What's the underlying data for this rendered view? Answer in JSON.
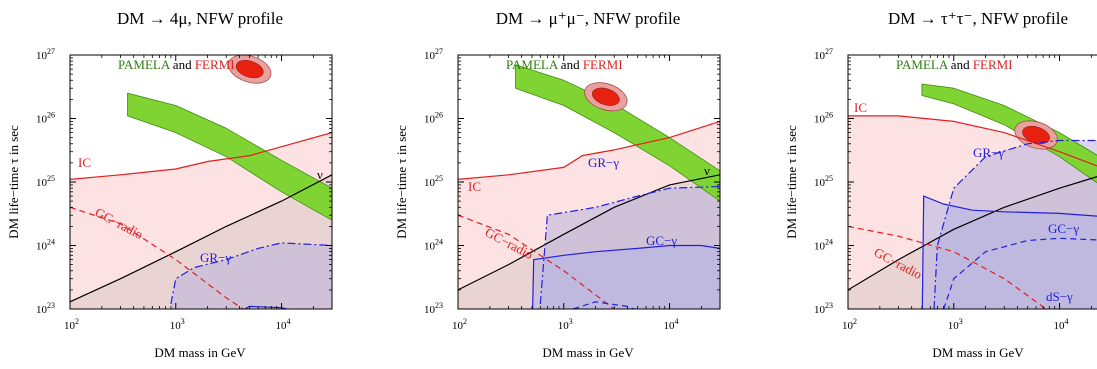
{
  "chart_data": [
    {
      "type": "area",
      "title": "DM → 4μ, NFW profile",
      "xlabel": "DM mass in GeV",
      "ylabel": "DM life−time τ in sec",
      "x_scale": "log",
      "y_scale": "log",
      "xlim": [
        100,
        30000
      ],
      "ylim": [
        1e+23,
        1e+27
      ],
      "x_ticks": [
        {
          "value": 100,
          "base": "10",
          "exp": "2"
        },
        {
          "value": 1000,
          "base": "10",
          "exp": "3"
        },
        {
          "value": 10000,
          "base": "10",
          "exp": "4"
        }
      ],
      "y_ticks": [
        {
          "value": 1e+23,
          "base": "10",
          "exp": "23"
        },
        {
          "value": 1e+24,
          "base": "10",
          "exp": "24"
        },
        {
          "value": 1e+25,
          "base": "10",
          "exp": "25"
        },
        {
          "value": 1e+26,
          "base": "10",
          "exp": "26"
        },
        {
          "value": 1e+27,
          "base": "10",
          "exp": "27"
        }
      ],
      "regions": [
        {
          "label": "PAMELA and FERMI",
          "label_parts": [
            "PAMELA",
            " and ",
            "FERMI"
          ],
          "fill": "#7fd433",
          "stroke": "#3f8c10",
          "style": "band",
          "x": [
            350,
            1000,
            3000,
            10000,
            30000
          ],
          "y_upper": [
            2.5e+26,
            1.6e+26,
            7e+25,
            2.2e+25,
            8e+24
          ],
          "y_lower": [
            1.1e+26,
            6e+25,
            2.5e+25,
            7e+24,
            2.5e+24
          ]
        },
        {
          "label": "IC",
          "color": "#e02020",
          "fill": "#f9caca",
          "style": "solid",
          "x": [
            100,
            300,
            1000,
            2000,
            5000,
            10000,
            30000
          ],
          "y": [
            1.1e+25,
            1.3e+25,
            1.6e+25,
            2.1e+25,
            2.6e+25,
            3.6e+25,
            6e+25
          ]
        },
        {
          "label": "ν",
          "color": "#000000",
          "fill": "#d9c6c6",
          "style": "solid",
          "x": [
            100,
            300,
            1000,
            3000,
            10000,
            30000
          ],
          "y": [
            1.3e+23,
            3e+23,
            8e+23,
            2e+24,
            5e+24,
            1.3e+25
          ]
        },
        {
          "label": "GC−radio",
          "color": "#e02020",
          "fill": "none",
          "style": "dashed",
          "x": [
            100,
            300,
            1000,
            3000,
            10000
          ],
          "y": [
            4e+24,
            2.2e+24,
            6e+23,
            1.5e+23,
            4e+22
          ]
        },
        {
          "label": "GR−γ",
          "color": "#2020dd",
          "fill": "#b9b2dc",
          "style": "dashdot",
          "x": [
            900,
            1000,
            1500,
            3000,
            6000,
            10000,
            30000
          ],
          "y": [
            1.2e+23,
            3e+23,
            4.5e+23,
            6e+23,
            9e+23,
            1.1e+24,
            1e+24
          ]
        },
        {
          "label": "",
          "color": "#2020dd",
          "fill": "none",
          "style": "solid",
          "x": [
            3000,
            5000,
            10000,
            20000
          ],
          "y": [
            7e+22,
            1.1e+23,
            1.05e+23,
            8e+22
          ]
        }
      ],
      "best_fit": {
        "x": 5000,
        "y": 6e+26,
        "fill": "#e82010",
        "halo": "#e8a0a0"
      }
    },
    {
      "type": "area",
      "title": "DM → μ⁺μ⁻, NFW profile",
      "xlabel": "DM mass in GeV",
      "ylabel": "DM life−time τ in sec",
      "x_scale": "log",
      "y_scale": "log",
      "xlim": [
        100,
        30000
      ],
      "ylim": [
        1e+23,
        1e+27
      ],
      "x_ticks": [
        {
          "value": 100,
          "base": "10",
          "exp": "2"
        },
        {
          "value": 1000,
          "base": "10",
          "exp": "3"
        },
        {
          "value": 10000,
          "base": "10",
          "exp": "4"
        }
      ],
      "y_ticks": [
        {
          "value": 1e+23,
          "base": "10",
          "exp": "23"
        },
        {
          "value": 1e+24,
          "base": "10",
          "exp": "24"
        },
        {
          "value": 1e+25,
          "base": "10",
          "exp": "25"
        },
        {
          "value": 1e+26,
          "base": "10",
          "exp": "26"
        },
        {
          "value": 1e+27,
          "base": "10",
          "exp": "27"
        }
      ],
      "regions": [
        {
          "label": "PAMELA and FERMI",
          "label_parts": [
            "PAMELA",
            " and ",
            "FERMI"
          ],
          "fill": "#7fd433",
          "stroke": "#3f8c10",
          "style": "band",
          "x": [
            350,
            1000,
            3000,
            10000,
            30000
          ],
          "y_upper": [
            7e+26,
            4e+26,
            1.7e+26,
            5e+25,
            1.5e+25
          ],
          "y_lower": [
            3e+26,
            1.6e+26,
            6e+25,
            1.8e+25,
            5e+24
          ]
        },
        {
          "label": "IC",
          "color": "#e02020",
          "fill": "#f9caca",
          "style": "solid",
          "x": [
            100,
            300,
            1000,
            1500,
            3000,
            10000,
            30000
          ],
          "y": [
            1.1e+25,
            1.3e+25,
            1.7e+25,
            2.6e+25,
            3.2e+25,
            5e+25,
            9e+25
          ]
        },
        {
          "label": "ν",
          "color": "#000000",
          "fill": "#d9c6c6",
          "style": "solid",
          "x": [
            100,
            300,
            1000,
            3000,
            10000,
            30000
          ],
          "y": [
            2e+23,
            5e+23,
            1.5e+24,
            4e+24,
            9e+24,
            1.3e+25
          ]
        },
        {
          "label": "GC−radio",
          "color": "#e02020",
          "fill": "none",
          "style": "dashed",
          "x": [
            100,
            300,
            1000,
            3000,
            10000
          ],
          "y": [
            3e+24,
            1.5e+24,
            4e+23,
            1e+23,
            3e+22
          ]
        },
        {
          "label": "GR−γ",
          "color": "#2020dd",
          "fill": "#b9b2dc",
          "style": "dashdot",
          "x": [
            600,
            700,
            1000,
            2000,
            5000,
            10000,
            30000
          ],
          "y": [
            1.2e+23,
            3e+24,
            3.3e+24,
            4e+24,
            6e+24,
            8e+24,
            8.5e+24
          ]
        },
        {
          "label": "GC−γ",
          "color": "#2020dd",
          "fill": "#b3b3e6",
          "style": "solid",
          "x": [
            500,
            520,
            1000,
            2000,
            5000,
            10000,
            20000,
            30000
          ],
          "y": [
            3e+22,
            6e+23,
            7e+23,
            8e+23,
            9e+23,
            1e+24,
            1e+24,
            9e+23
          ]
        },
        {
          "label": "",
          "color": "#2020dd",
          "fill": "none",
          "style": "dashed",
          "x": [
            1000,
            2000,
            4000,
            8000
          ],
          "y": [
            9e+22,
            1.3e+23,
            1.1e+23,
            7e+22
          ]
        }
      ],
      "best_fit": {
        "x": 2500,
        "y": 2.2e+26,
        "fill": "#e82010",
        "halo": "#e8a0a0"
      }
    },
    {
      "type": "area",
      "title": "DM → τ⁺τ⁻, NFW profile",
      "xlabel": "DM mass in GeV",
      "ylabel": "DM life−time τ in sec",
      "x_scale": "log",
      "y_scale": "log",
      "xlim": [
        100,
        30000
      ],
      "ylim": [
        1e+23,
        1e+27
      ],
      "x_ticks": [
        {
          "value": 100,
          "base": "10",
          "exp": "2"
        },
        {
          "value": 1000,
          "base": "10",
          "exp": "3"
        },
        {
          "value": 10000,
          "base": "10",
          "exp": "4"
        }
      ],
      "y_ticks": [
        {
          "value": 1e+23,
          "base": "10",
          "exp": "23"
        },
        {
          "value": 1e+24,
          "base": "10",
          "exp": "24"
        },
        {
          "value": 1e+25,
          "base": "10",
          "exp": "25"
        },
        {
          "value": 1e+26,
          "base": "10",
          "exp": "26"
        },
        {
          "value": 1e+27,
          "base": "10",
          "exp": "27"
        }
      ],
      "regions": [
        {
          "label": "PAMELA and FERMI",
          "label_parts": [
            "PAMELA",
            " and ",
            "FERMI"
          ],
          "fill": "#7fd433",
          "stroke": "#3f8c10",
          "style": "band",
          "x": [
            500,
            1000,
            3000,
            10000,
            30000
          ],
          "y_upper": [
            3.5e+26,
            3e+26,
            1.6e+26,
            6e+25,
            2e+25
          ],
          "y_lower": [
            2.3e+26,
            1.7e+26,
            8e+25,
            2.5e+25,
            7e+24
          ]
        },
        {
          "label": "IC",
          "color": "#e02020",
          "fill": "#f9caca",
          "style": "solid",
          "x": [
            100,
            300,
            1000,
            3000,
            10000,
            30000
          ],
          "y": [
            1.1e+26,
            1.1e+26,
            9e+25,
            6e+25,
            3e+25,
            1.5e+25
          ]
        },
        {
          "label": "ν",
          "color": "#000000",
          "fill": "#d9c6c6",
          "style": "solid",
          "x": [
            100,
            300,
            1000,
            3000,
            10000,
            30000
          ],
          "y": [
            2e+23,
            6e+23,
            1.8e+24,
            4e+24,
            8e+24,
            1.4e+25
          ]
        },
        {
          "label": "GC−radio",
          "color": "#e02020",
          "fill": "none",
          "style": "dashed",
          "x": [
            100,
            300,
            1000,
            3000,
            10000,
            30000
          ],
          "y": [
            2e+24,
            1.4e+24,
            8e+23,
            3e+23,
            7e+22,
            2e+22
          ]
        },
        {
          "label": "GR−γ",
          "color": "#2020dd",
          "fill": "#b9b2dc",
          "style": "dashdot",
          "x": [
            650,
            700,
            1000,
            2000,
            5000,
            10000,
            30000
          ],
          "y": [
            1e+23,
            1e+24,
            8e+24,
            2.5e+25,
            4e+25,
            4.5e+25,
            4.5e+25
          ]
        },
        {
          "label": "GC−γ",
          "color": "#2020dd",
          "fill": "#b3b3e6",
          "style": "solid",
          "x": [
            500,
            520,
            800,
            1500,
            3000,
            10000,
            30000
          ],
          "y": [
            3e+22,
            6e+24,
            4.5e+24,
            3.6e+24,
            3.4e+24,
            3.2e+24,
            2.8e+24
          ]
        },
        {
          "label": "dS−γ",
          "color": "#2020dd",
          "fill": "none",
          "style": "dashed",
          "x": [
            700,
            1000,
            2000,
            5000,
            10000,
            30000
          ],
          "y": [
            5e+22,
            3e+23,
            8e+23,
            1.2e+24,
            1.3e+24,
            1.2e+24
          ]
        }
      ],
      "best_fit": {
        "x": 6000,
        "y": 5.5e+25,
        "fill": "#e82010",
        "halo": "#e8a0a0"
      }
    }
  ]
}
